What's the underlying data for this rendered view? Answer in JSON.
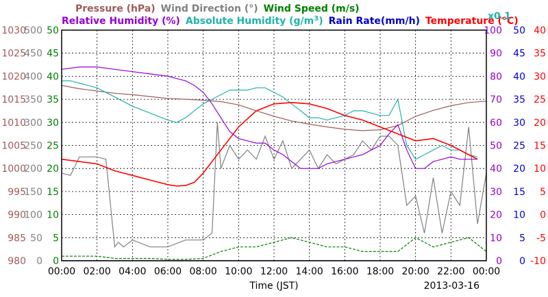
{
  "chart_data": {
    "type": "line",
    "date_label": "2013-03-16",
    "xlabel": "Time (JST)",
    "x_ticks": [
      "00:00",
      "02:00",
      "04:00",
      "06:00",
      "08:00",
      "10:00",
      "12:00",
      "14:00",
      "16:00",
      "18:00",
      "20:00",
      "22:00",
      "00:00"
    ],
    "header_row1": [
      {
        "text": "Pressure (hPa)",
        "color": "#a05a5a"
      },
      {
        "text": "Wind Direction (°)",
        "color": "#808080"
      },
      {
        "text": "Wind Speed (m/s)",
        "color": "#008000"
      }
    ],
    "header_row2": [
      {
        "text": "Relative Humidity (%)",
        "color": "#9400d3"
      },
      {
        "text": "Absolute Humidity (g/m",
        "sup": "3",
        "tail": ")",
        "color": "#20b2aa"
      },
      {
        "text": "Rain Rate(mm/h)",
        "color": "#0000cd"
      },
      {
        "text": "Temperature (°C)",
        "color": "#ff0000"
      }
    ],
    "scale_note": {
      "text": "x0.1",
      "color": "#20b2aa"
    },
    "axes": {
      "pressure": {
        "color": "#a05a5a",
        "ticks": [
          "1030",
          "1025",
          "1020",
          "1015",
          "1010",
          "1005",
          "1000",
          "995",
          "990",
          "985",
          "980"
        ]
      },
      "wind_direction": {
        "color": "#808080",
        "ticks": [
          "500",
          "450",
          "400",
          "350",
          "300",
          "250",
          "200",
          "150",
          "100",
          "50",
          "0"
        ]
      },
      "wind_speed": {
        "color": "#008000",
        "ticks": [
          "50",
          "45",
          "40",
          "35",
          "30",
          "25",
          "20",
          "15",
          "10",
          "5",
          "0"
        ]
      },
      "humidity": {
        "color": "#9400d3",
        "ticks": [
          "100",
          "90",
          "80",
          "70",
          "60",
          "50",
          "40",
          "30",
          "20",
          "10",
          "0"
        ]
      },
      "rain_rate": {
        "color": "#0000cd",
        "ticks": [
          "50",
          "45",
          "40",
          "35",
          "30",
          "25",
          "20",
          "15",
          "10",
          "5",
          "0"
        ]
      },
      "temperature": {
        "color": "#ff0000",
        "ticks": [
          "40",
          "35",
          "30",
          "25",
          "20",
          "15",
          "10",
          "5",
          "0",
          "-5",
          "-10"
        ]
      }
    },
    "x_range_hours": [
      0,
      24
    ],
    "grid": true,
    "series": [
      {
        "name": "Pressure (hPa)",
        "color": "#a05a5a",
        "ylim": [
          980,
          1030
        ],
        "x": [
          0,
          1,
          2,
          3,
          4,
          5,
          6,
          7,
          8,
          9,
          10,
          11,
          12,
          13,
          14,
          15,
          16,
          17,
          18,
          19,
          20,
          21,
          22,
          23,
          24
        ],
        "y": [
          1018,
          1017.3,
          1016.8,
          1016.3,
          1016,
          1015.6,
          1015.2,
          1015,
          1014.8,
          1014.5,
          1013.8,
          1012.5,
          1011.3,
          1010.3,
          1009.6,
          1009,
          1008.5,
          1008.2,
          1008.4,
          1009.3,
          1011.3,
          1012.6,
          1013.6,
          1014.3,
          1014.6
        ]
      },
      {
        "name": "Wind Direction (°)",
        "color": "#808080",
        "ylim": [
          0,
          500
        ],
        "x": [
          0,
          0.5,
          1,
          1.5,
          2,
          2.5,
          3,
          3.2,
          3.5,
          4,
          5,
          6,
          7,
          8,
          8.5,
          8.8,
          9,
          9.5,
          10,
          10.5,
          11,
          11.5,
          12,
          12.5,
          13,
          13.5,
          14,
          14.5,
          15,
          15.5,
          16,
          16.5,
          17,
          17.5,
          18,
          18.5,
          19,
          19.5,
          20,
          20.5,
          21,
          21.5,
          22,
          22.5,
          23,
          23.5,
          24
        ],
        "y": [
          190,
          185,
          225,
          225,
          225,
          220,
          30,
          40,
          30,
          45,
          30,
          30,
          45,
          45,
          60,
          300,
          200,
          250,
          220,
          240,
          220,
          270,
          220,
          260,
          200,
          220,
          240,
          200,
          230,
          210,
          220,
          230,
          260,
          240,
          270,
          270,
          250,
          120,
          140,
          60,
          180,
          60,
          150,
          120,
          290,
          80,
          190
        ]
      },
      {
        "name": "Wind Speed (m/s)",
        "color": "#008000",
        "ylim": [
          0,
          50
        ],
        "x": [
          0,
          1,
          2,
          3,
          4,
          5,
          6,
          7,
          8,
          9,
          10,
          11,
          12,
          13,
          14,
          15,
          16,
          17,
          18,
          19,
          20,
          21,
          22,
          23,
          24
        ],
        "y": [
          1,
          1,
          1,
          0.5,
          0.5,
          0.5,
          0.3,
          0.3,
          0.5,
          2,
          3,
          3,
          4,
          5,
          4,
          3,
          3,
          2,
          2,
          2,
          5,
          3,
          4,
          5,
          2
        ]
      },
      {
        "name": "Relative Humidity (%)",
        "color": "#9400d3",
        "ylim": [
          0,
          100
        ],
        "x": [
          0,
          1,
          2,
          3,
          4,
          5,
          6,
          6.5,
          7,
          7.5,
          8,
          8.5,
          9,
          9.5,
          10,
          10.5,
          11,
          11.5,
          12,
          12.5,
          13,
          13.5,
          14,
          14.5,
          15,
          15.5,
          16,
          16.5,
          17,
          17.5,
          18,
          18.5,
          19,
          19.5,
          20,
          20.5,
          21,
          21.5,
          22,
          22.5,
          23,
          23.5
        ],
        "y": [
          83,
          84,
          84,
          83,
          82,
          81,
          80,
          79,
          78,
          76,
          73,
          68,
          62,
          56,
          53,
          52,
          51,
          51,
          48,
          46,
          43,
          40,
          40,
          40,
          42,
          43,
          44,
          45,
          46,
          48,
          50,
          55,
          59,
          48,
          40,
          40,
          43,
          44,
          45,
          44,
          44,
          44
        ]
      },
      {
        "name": "Absolute Humidity (g/m3)",
        "color": "#20b2aa",
        "ylim": [
          0,
          100
        ],
        "x": [
          0,
          0.5,
          1,
          2,
          3,
          4,
          5,
          6,
          6.5,
          7,
          7.5,
          8,
          8.5,
          9,
          9.5,
          10,
          10.5,
          11,
          11.5,
          12,
          12.5,
          13,
          13.5,
          14,
          14.5,
          15,
          15.5,
          16,
          16.5,
          17,
          17.5,
          18,
          18.5,
          19,
          19.5,
          20,
          20.5,
          21,
          21.5,
          22,
          22.5,
          23,
          23.5
        ],
        "y": [
          78,
          78,
          77,
          75,
          71,
          67,
          64,
          61,
          60,
          62,
          65,
          68,
          70,
          72,
          74,
          74,
          74,
          75,
          75,
          73,
          71,
          68,
          65,
          62,
          62,
          61,
          62,
          63,
          65,
          65,
          64,
          63,
          63,
          70,
          50,
          44,
          46,
          48,
          50,
          48,
          48,
          46,
          45
        ]
      },
      {
        "name": "Rain Rate(mm/h)",
        "color": "#0000cd",
        "ylim": [
          0,
          50
        ],
        "x": [
          0,
          24
        ],
        "y": [
          0,
          0
        ]
      },
      {
        "name": "Temperature (°C)",
        "color": "#ff0000",
        "ylim": [
          -10,
          40
        ],
        "x": [
          0,
          1,
          2,
          3,
          4,
          5,
          6,
          6.5,
          7,
          7.5,
          8,
          9,
          10,
          11,
          12,
          13,
          14,
          15,
          16,
          17,
          18,
          19,
          20,
          21,
          22,
          23,
          23.5
        ],
        "y": [
          12,
          11.5,
          11,
          9.5,
          8.5,
          7.5,
          6.5,
          6.2,
          6.3,
          7,
          9,
          14,
          19,
          22.5,
          24,
          24.3,
          24,
          23,
          21.5,
          20.5,
          19,
          17.5,
          16,
          16.5,
          15,
          13,
          12
        ]
      }
    ]
  }
}
